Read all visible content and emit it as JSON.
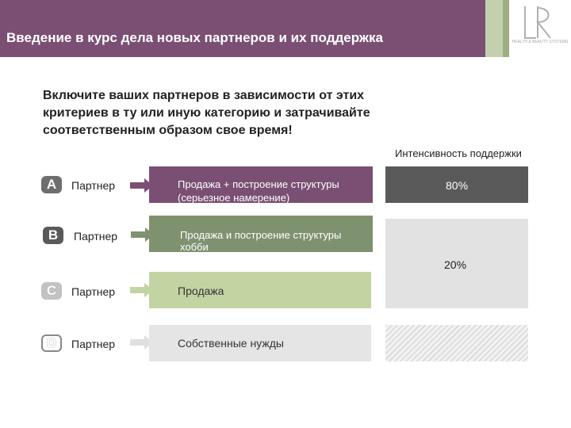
{
  "header": {
    "title": "Введение в курс дела новых партнеров и их поддержка",
    "logo_subtitle": "HEALTH & BEAUTY SYSTEMS",
    "colors": {
      "header": "#7a4f73",
      "stripe_light": "#c3d0ad",
      "stripe_dark": "#9dae82"
    }
  },
  "intro": {
    "line1": "Включите ваших партнеров в зависимости от этих",
    "line2": "критериев в ту или иную категорию и затрачивайте",
    "line3": "соответственным образом свое время!"
  },
  "intensity_label": "Интенсивность поддержки",
  "rows": [
    {
      "letter": "A",
      "partner": "Партнер",
      "text1": "Продажа + построение структуры",
      "text2": "(серьезное намерение)",
      "color": "#7a4f73"
    },
    {
      "letter": "B",
      "partner": "Партнер",
      "text1": "Продажа и построение структуры",
      "text2": "хобби",
      "color": "#7f9270"
    },
    {
      "letter": "C",
      "partner": "Партнер",
      "text1": "Продажа",
      "color": "#c3d4a3"
    },
    {
      "letter": "D",
      "partner": "Партнер",
      "text1": "Собственные нужды",
      "color": "#e5e5e5"
    }
  ],
  "support": {
    "high_percent": "80%",
    "low_percent": "20%",
    "high_fraction": 0.8,
    "low_fraction": 0.2
  },
  "icons": {
    "arrow": "arrow-right-icon",
    "logo": "lr-logo-icon"
  }
}
